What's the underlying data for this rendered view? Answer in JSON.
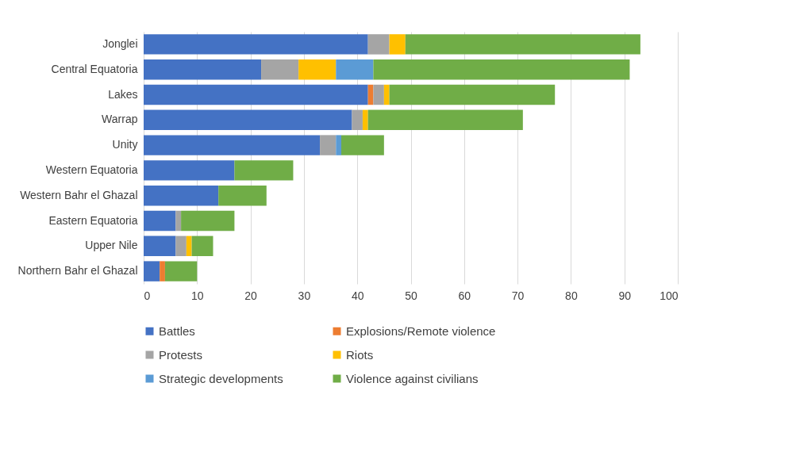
{
  "chart_data": {
    "type": "bar",
    "orientation": "horizontal",
    "stacked": true,
    "grid": "x",
    "legend": "bottom",
    "categories": [
      "Jonglei",
      "Central Equatoria",
      "Lakes",
      "Warrap",
      "Unity",
      "Western Equatoria",
      "Western Bahr el Ghazal",
      "Eastern Equatoria",
      "Upper Nile",
      "Northern Bahr el Ghazal"
    ],
    "xlim": [
      0,
      100
    ],
    "xticks": [
      0,
      10,
      20,
      30,
      40,
      50,
      60,
      70,
      80,
      90,
      100
    ],
    "series": [
      {
        "name": "Battles",
        "color": "#4472c4",
        "values": [
          42,
          22,
          42,
          39,
          33,
          17,
          14,
          6,
          6,
          3
        ]
      },
      {
        "name": "Explosions/Remote violence",
        "color": "#ed7d31",
        "values": [
          0,
          0,
          1,
          0,
          0,
          0,
          0,
          0,
          0,
          1
        ]
      },
      {
        "name": "Protests",
        "color": "#a5a5a5",
        "values": [
          4,
          7,
          2,
          2,
          3,
          0,
          0,
          1,
          2,
          0
        ]
      },
      {
        "name": "Riots",
        "color": "#ffc000",
        "values": [
          3,
          7,
          1,
          1,
          0,
          0,
          0,
          0,
          1,
          0
        ]
      },
      {
        "name": "Strategic developments",
        "color": "#5b9bd5",
        "values": [
          0,
          7,
          0,
          0,
          1,
          0,
          0,
          0,
          0,
          0
        ]
      },
      {
        "name": "Violence against civilians",
        "color": "#70ad47",
        "values": [
          44,
          48,
          31,
          29,
          8,
          11,
          9,
          10,
          4,
          6
        ]
      }
    ]
  }
}
